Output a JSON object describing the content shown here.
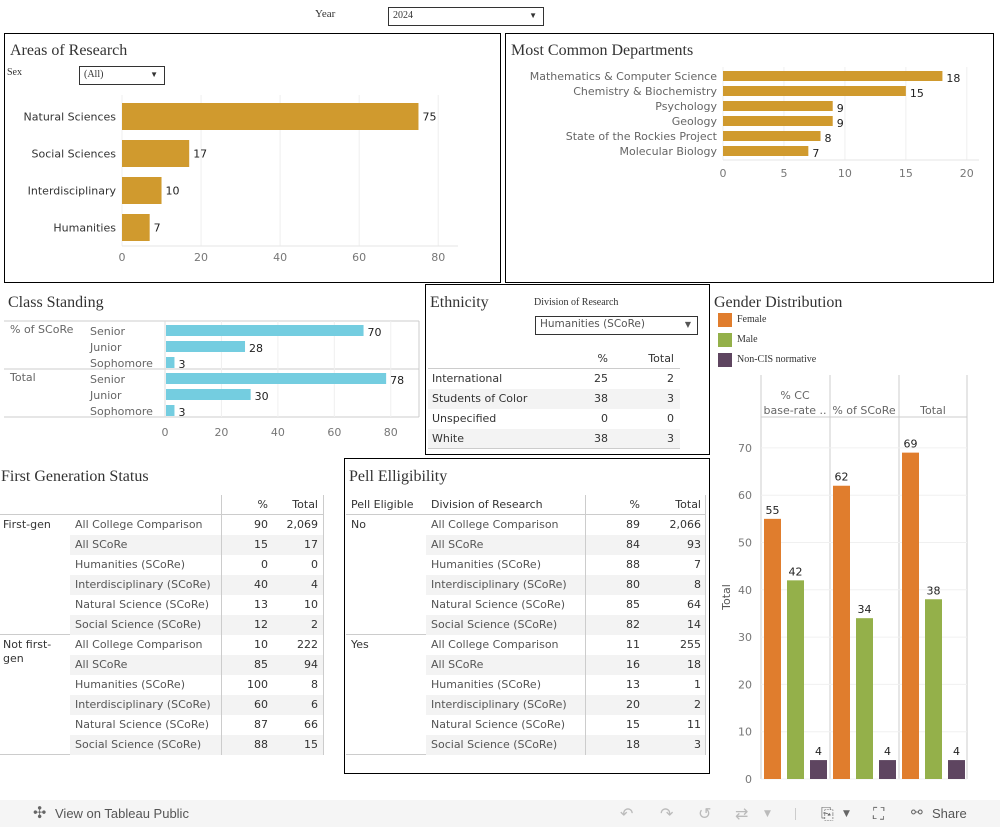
{
  "filters": {
    "year": {
      "label": "Year",
      "value": "2024"
    },
    "sex": {
      "label": "Sex",
      "value": "(All)"
    },
    "division": {
      "label": "Division of Research",
      "value": "Humanities (SCoRe)"
    }
  },
  "panels": {
    "areas": {
      "title": "Areas of Research"
    },
    "departments": {
      "title": "Most Common Departments"
    },
    "class_standing": {
      "title": "Class Standing"
    },
    "ethnicity": {
      "title": "Ethnicity",
      "headers": [
        "%",
        "Total"
      ],
      "rows": [
        {
          "label": "International",
          "pct": "25",
          "total": "2"
        },
        {
          "label": "Students of Color",
          "pct": "38",
          "total": "3"
        },
        {
          "label": "Unspecified",
          "pct": "0",
          "total": "0"
        },
        {
          "label": "White",
          "pct": "38",
          "total": "3"
        }
      ]
    },
    "gender": {
      "title": "Gender Distribution",
      "legend": [
        {
          "label": "Female",
          "color": "#e07d2d"
        },
        {
          "label": "Male",
          "color": "#94b04a"
        },
        {
          "label": "Non-CIS normative",
          "color": "#5e4560"
        }
      ]
    },
    "first_gen": {
      "title": "First Generation Status",
      "headers": [
        "%",
        "Total"
      ],
      "groups": [
        {
          "label": "First-gen",
          "rows": [
            {
              "division": "All College Comparison",
              "pct": "90",
              "total": "2,069"
            },
            {
              "division": "All SCoRe",
              "pct": "15",
              "total": "17"
            },
            {
              "division": "Humanities (SCoRe)",
              "pct": "0",
              "total": "0"
            },
            {
              "division": "Interdisciplinary (SCoRe)",
              "pct": "40",
              "total": "4"
            },
            {
              "division": "Natural Science (SCoRe)",
              "pct": "13",
              "total": "10"
            },
            {
              "division": "Social Science (SCoRe)",
              "pct": "12",
              "total": "2"
            }
          ]
        },
        {
          "label": "Not first-gen",
          "rows": [
            {
              "division": "All College Comparison",
              "pct": "10",
              "total": "222"
            },
            {
              "division": "All SCoRe",
              "pct": "85",
              "total": "94"
            },
            {
              "division": "Humanities (SCoRe)",
              "pct": "100",
              "total": "8"
            },
            {
              "division": "Interdisciplinary (SCoRe)",
              "pct": "60",
              "total": "6"
            },
            {
              "division": "Natural Science (SCoRe)",
              "pct": "87",
              "total": "66"
            },
            {
              "division": "Social Science (SCoRe)",
              "pct": "88",
              "total": "15"
            }
          ]
        }
      ]
    },
    "pell": {
      "title": "Pell Elligibility",
      "headers": [
        "Pell Eligible",
        "Division of Research",
        "%",
        "Total"
      ],
      "groups": [
        {
          "label": "No",
          "rows": [
            {
              "division": "All College Comparison",
              "pct": "89",
              "total": "2,066"
            },
            {
              "division": "All SCoRe",
              "pct": "84",
              "total": "93"
            },
            {
              "division": "Humanities (SCoRe)",
              "pct": "88",
              "total": "7"
            },
            {
              "division": "Interdisciplinary (SCoRe)",
              "pct": "80",
              "total": "8"
            },
            {
              "division": "Natural Science (SCoRe)",
              "pct": "85",
              "total": "64"
            },
            {
              "division": "Social Science (SCoRe)",
              "pct": "82",
              "total": "14"
            }
          ]
        },
        {
          "label": "Yes",
          "rows": [
            {
              "division": "All College Comparison",
              "pct": "11",
              "total": "255"
            },
            {
              "division": "All SCoRe",
              "pct": "16",
              "total": "18"
            },
            {
              "division": "Humanities (SCoRe)",
              "pct": "13",
              "total": "1"
            },
            {
              "division": "Interdisciplinary (SCoRe)",
              "pct": "20",
              "total": "2"
            },
            {
              "division": "Natural Science (SCoRe)",
              "pct": "15",
              "total": "11"
            },
            {
              "division": "Social Science (SCoRe)",
              "pct": "18",
              "total": "3"
            }
          ]
        }
      ]
    }
  },
  "chart_data": [
    {
      "id": "areas",
      "type": "bar",
      "orientation": "horizontal",
      "title": "Areas of Research",
      "categories": [
        "Natural Sciences",
        "Social Sciences",
        "Interdisciplinary",
        "Humanities"
      ],
      "values": [
        75,
        17,
        10,
        7
      ],
      "xlim": [
        0,
        85
      ],
      "xticks": [
        0,
        20,
        40,
        60,
        80
      ],
      "color": "#d09a2e",
      "grid": true
    },
    {
      "id": "departments",
      "type": "bar",
      "orientation": "horizontal",
      "title": "Most Common Departments",
      "categories": [
        "Mathematics & Computer Science",
        "Chemistry & Biochemistry",
        "Psychology",
        "Geology",
        "State of the Rockies Project",
        "Molecular Biology"
      ],
      "values": [
        18,
        15,
        9,
        9,
        8,
        7
      ],
      "xlim": [
        0,
        21
      ],
      "xticks": [
        0,
        5,
        10,
        15,
        20
      ],
      "color": "#d09a2e",
      "grid": true
    },
    {
      "id": "class_standing",
      "type": "bar",
      "orientation": "horizontal",
      "title": "Class Standing",
      "groups": [
        {
          "label": "% of SCoRe",
          "categories": [
            "Senior",
            "Junior",
            "Sophomore"
          ],
          "values": [
            70,
            28,
            3
          ]
        },
        {
          "label": "Total",
          "categories": [
            "Senior",
            "Junior",
            "Sophomore"
          ],
          "values": [
            78,
            30,
            3
          ]
        }
      ],
      "xlim": [
        0,
        90
      ],
      "xticks": [
        0,
        20,
        40,
        60,
        80
      ],
      "color": "#74cde0",
      "grid": true
    },
    {
      "id": "gender",
      "type": "bar",
      "orientation": "vertical",
      "title": "Gender Distribution",
      "ylabel": "Total",
      "ylim": [
        0,
        75
      ],
      "yticks": [
        0,
        10,
        20,
        30,
        40,
        50,
        60,
        70
      ],
      "columns": [
        "% CC base-rate ..",
        "% of SCoRe",
        "Total"
      ],
      "series": [
        {
          "name": "Female",
          "color": "#e07d2d",
          "values": [
            55,
            62,
            69
          ]
        },
        {
          "name": "Male",
          "color": "#94b04a",
          "values": [
            42,
            34,
            38
          ]
        },
        {
          "name": "Non-CIS normative",
          "color": "#5e4560",
          "values": [
            4,
            4,
            4
          ]
        }
      ],
      "legend": "top-left",
      "grid": true
    }
  ],
  "footer": {
    "view_label": "View on Tableau Public",
    "share_label": "Share",
    "icons": [
      "tableau-logo-icon",
      "undo-icon",
      "redo-icon",
      "revert-icon",
      "refresh-icon",
      "download-icon",
      "fullscreen-icon",
      "share-icon"
    ]
  }
}
